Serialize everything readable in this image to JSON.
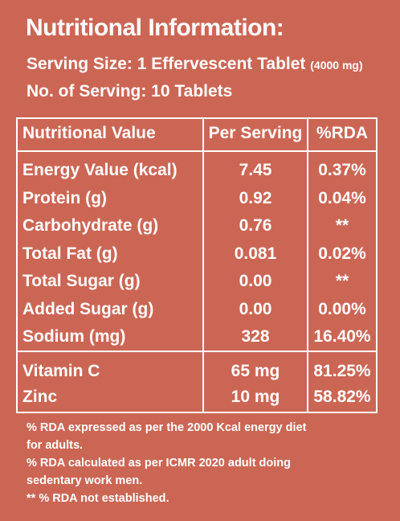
{
  "title": "Nutritional Information:",
  "serving_size_label": "Serving Size: 1 Effervescent Tablet",
  "serving_size_weight": "(4000 mg)",
  "servings_count": "No. of Serving: 10 Tablets",
  "table": {
    "headers": [
      "Nutritional Value",
      "Per Serving",
      "%RDA"
    ],
    "rows": [
      {
        "name": "Energy Value (kcal)",
        "per": "7.45",
        "rda": "0.37%"
      },
      {
        "name": "Protein (g)",
        "per": "0.92",
        "rda": "0.04%"
      },
      {
        "name": "Carbohydrate (g)",
        "per": "0.76",
        "rda": "**"
      },
      {
        "name": "Total Fat (g)",
        "per": "0.081",
        "rda": "0.02%"
      },
      {
        "name": "Total Sugar (g)",
        "per": "0.00",
        "rda": "**"
      },
      {
        "name": "Added Sugar (g)",
        "per": "0.00",
        "rda": "0.00%"
      },
      {
        "name": "Sodium (mg)",
        "per": "328",
        "rda": "16.40%"
      }
    ],
    "micro": [
      {
        "name": "Vitamin C",
        "per": "65 mg",
        "rda": "81.25%"
      },
      {
        "name": "Zinc",
        "per": "10 mg",
        "rda": "58.82%"
      }
    ]
  },
  "notes": [
    "% RDA expressed as per the 2000 Kcal energy diet",
    "for adults.",
    "% RDA calculated as per ICMR 2020  adult doing",
    "sedentary work men.",
    "** % RDA not established."
  ],
  "colors": {
    "background": "#cc6654",
    "text": "#ffffff"
  }
}
